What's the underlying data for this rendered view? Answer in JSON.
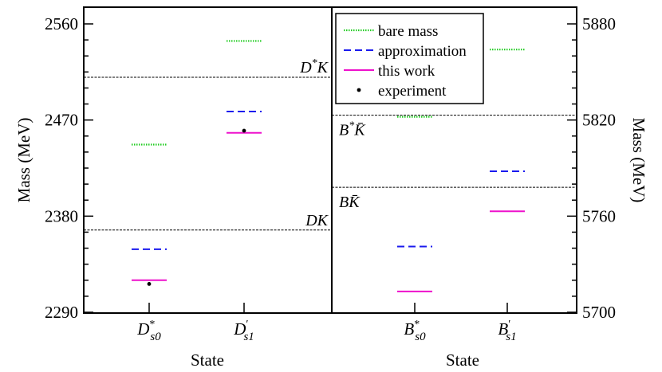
{
  "chart_data": [
    {
      "type": "scatter",
      "panel": "left",
      "xlabel": "State",
      "ylabel": "Mass (MeV)",
      "ylim": [
        2290,
        2560
      ],
      "yticks": [
        2290,
        2380,
        2470,
        2560
      ],
      "categories": [
        {
          "base": "D",
          "sup": "*",
          "sub": "s0",
          "text": "D*s0"
        },
        {
          "base": "D",
          "sup": "′",
          "sub": "s1",
          "text": "D′s1"
        }
      ],
      "series": [
        {
          "name": "bare mass",
          "values": [
            2447,
            2544
          ]
        },
        {
          "name": "approximation",
          "values": [
            2349,
            2478
          ]
        },
        {
          "name": "this work",
          "values": [
            2320,
            2458
          ]
        },
        {
          "name": "experiment",
          "values": [
            2318,
            2460
          ]
        }
      ],
      "thresholds": [
        {
          "label": "DK",
          "base": "DK",
          "value": 2367
        },
        {
          "label": "D*K",
          "base": "D",
          "sup": "*",
          "rest": "K",
          "value": 2510
        }
      ]
    },
    {
      "type": "scatter",
      "panel": "right",
      "xlabel": "State",
      "ylabel": "Mass (MeV)",
      "ylim": [
        5700,
        5880
      ],
      "yticks": [
        5700,
        5760,
        5820,
        5880
      ],
      "categories": [
        {
          "base": "B",
          "sup": "*",
          "sub": "s0",
          "text": "B*s0"
        },
        {
          "base": "B",
          "sup": "′",
          "sub": "s1",
          "text": "B′s1"
        }
      ],
      "series": [
        {
          "name": "bare mass",
          "values": [
            5822,
            5864
          ]
        },
        {
          "name": "approximation",
          "values": [
            5741,
            5788
          ]
        },
        {
          "name": "this work",
          "values": [
            5713,
            5763
          ]
        },
        {
          "name": "experiment",
          "values": [
            null,
            null
          ]
        }
      ],
      "thresholds": [
        {
          "label": "BK̄",
          "base": "B",
          "bar": "K",
          "value": 5778
        },
        {
          "label": "B*K̄",
          "base": "B",
          "sup": "*",
          "bar": "K",
          "value": 5823
        }
      ]
    }
  ],
  "legend": {
    "position": "top-right of left half / top of right panel",
    "items": [
      {
        "label": "bare mass",
        "color": "#22cc22",
        "style": "dotted"
      },
      {
        "label": "approximation",
        "color": "#1a1aee",
        "style": "dashed"
      },
      {
        "label": "this work",
        "color": "#ee11cc",
        "style": "solid"
      },
      {
        "label": "experiment",
        "color": "#000000",
        "style": "dot"
      }
    ]
  },
  "colors": {
    "bare": "#22cc22",
    "approx": "#1a1aee",
    "work": "#ee11cc",
    "exp": "#000000",
    "threshold": "#000000"
  }
}
